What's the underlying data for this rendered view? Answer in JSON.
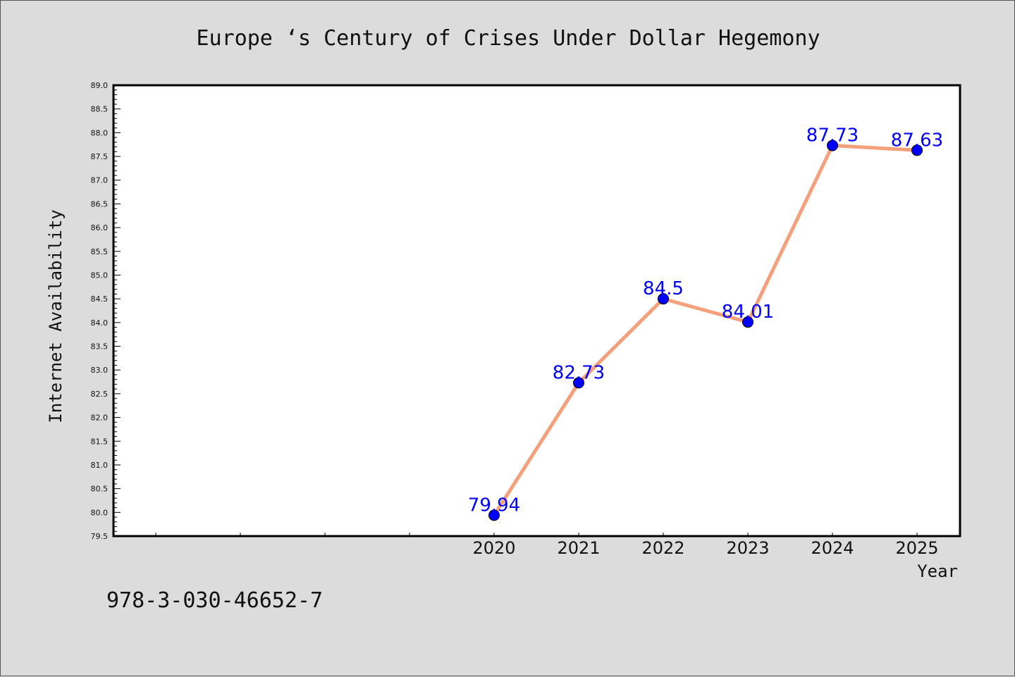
{
  "chart_data": {
    "type": "line",
    "title": "Europe ‘s Century of Crises Under Dollar Hegemony",
    "xlabel": "Year",
    "ylabel": "Internet Availability",
    "x": [
      "2020",
      "2021",
      "2022",
      "2023",
      "2024",
      "2025"
    ],
    "series": [
      {
        "values": [
          79.94,
          82.73,
          84.5,
          84.01,
          87.73,
          87.63
        ]
      }
    ],
    "data_labels": [
      "79.94",
      "82.73",
      "84.5",
      "84.01",
      "87.73",
      "87.63"
    ],
    "ylim": [
      79.5,
      89.0
    ],
    "yticks": [
      "79.5",
      "80.0",
      "80.5",
      "81.0",
      "81.5",
      "82.0",
      "82.5",
      "83.0",
      "83.5",
      "84.0",
      "84.5",
      "85.0",
      "85.5",
      "86.0",
      "86.5",
      "87.0",
      "87.5",
      "88.0",
      "88.5",
      "89.0"
    ],
    "grid": false,
    "colors": {
      "line": "#f4a07a",
      "marker": "#0000ff",
      "label": "#0000ff",
      "background": "#dcdcdc",
      "plot_area": "#ffffff"
    }
  },
  "footer": {
    "isbn": "978-3-030-46652-7"
  }
}
